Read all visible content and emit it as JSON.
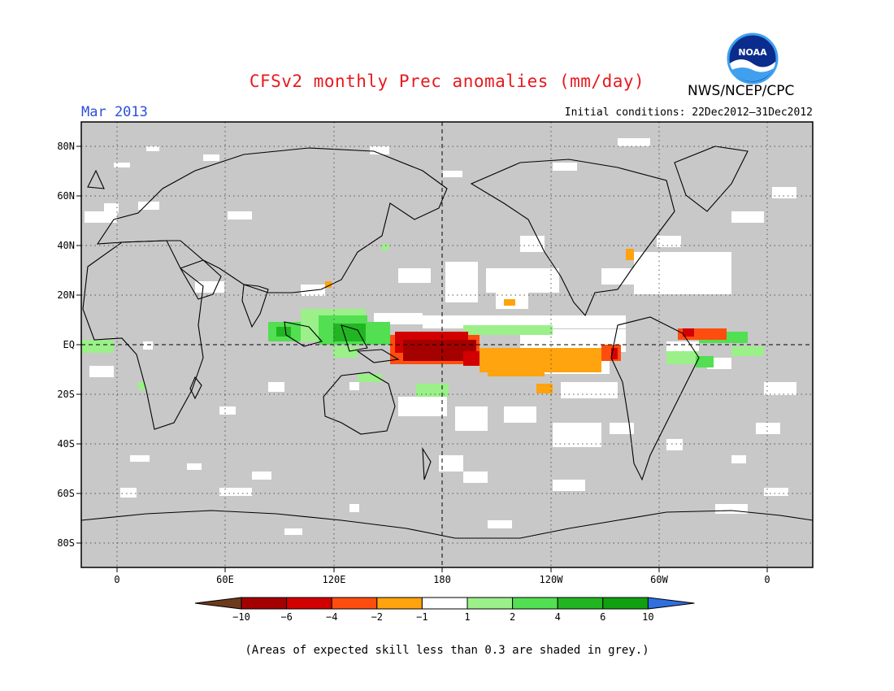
{
  "header": {
    "title": "CFSv2 monthly Prec anomalies (mm/day)",
    "month": "Mar 2013",
    "initial_conditions": "Initial conditions: 22Dec2012–31Dec2012",
    "agency": "NWS/NCEP/CPC",
    "logo_text": "NOAA"
  },
  "map": {
    "lat_labels": [
      "80N",
      "60N",
      "40N",
      "20N",
      "EQ",
      "20S",
      "40S",
      "60S",
      "80S"
    ],
    "lon_labels": [
      "0",
      "60E",
      "120E",
      "180",
      "120W",
      "60W",
      "0"
    ],
    "grey_color": "#c8c8c8"
  },
  "legend": {
    "colors": [
      "#6e3a1c",
      "#a50000",
      "#d20000",
      "#ff4d0f",
      "#ffa30e",
      "#ffffff",
      "#9bf089",
      "#52df52",
      "#22b522",
      "#10a010",
      "#2f6fe0"
    ],
    "labels": [
      "−10",
      "−6",
      "−4",
      "−2",
      "−1",
      "1",
      "2",
      "4",
      "6",
      "10"
    ]
  },
  "footnote": "(Areas of expected skill less than 0.3 are shaded in grey.)"
}
